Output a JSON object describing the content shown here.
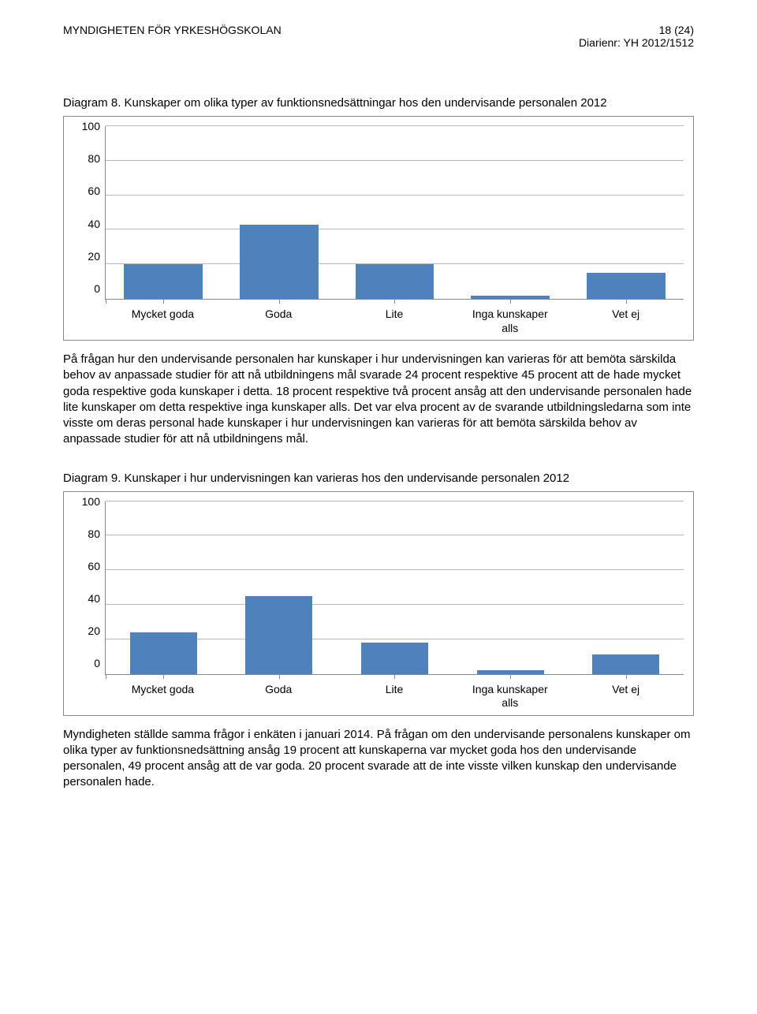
{
  "header": {
    "left": "MYNDIGHETEN FÖR YRKESHÖGSKOLAN",
    "page": "18 (24)",
    "ref": "Diarienr: YH 2012/1512"
  },
  "diagram8": {
    "title": "Diagram 8. Kunskaper om olika typer av funktionsnedsättningar hos den undervisande personalen 2012",
    "type": "bar",
    "categories": [
      "Mycket goda",
      "Goda",
      "Lite",
      "Inga kunskaper\nalls",
      "Vet ej"
    ],
    "values": [
      20,
      43,
      20,
      2,
      15
    ],
    "bar_color": "#4f81bd",
    "ylim_max": 100,
    "ytick_step": 20,
    "yticks": [
      "100",
      "80",
      "60",
      "40",
      "20",
      "0"
    ],
    "grid_color": "#bbbbbb",
    "border_color": "#888888",
    "label_fontsize": 14
  },
  "paragraph1": "På frågan hur den undervisande personalen har kunskaper i hur undervisningen kan varieras för att bemöta särskilda behov av anpassade studier för att nå utbildningens mål svarade 24 procent respektive 45 procent att de hade mycket goda respektive goda kunskaper i detta. 18 procent respektive två procent ansåg att den undervisande personalen hade lite kunskaper om detta respektive inga kunskaper alls. Det var elva procent av de svarande utbildningsledarna som inte visste om deras personal hade kunskaper i hur undervisningen kan varieras för att bemöta särskilda behov av anpassade studier för att nå utbildningens mål.",
  "diagram9": {
    "title": "Diagram 9. Kunskaper i hur undervisningen kan varieras hos den undervisande personalen 2012",
    "type": "bar",
    "categories": [
      "Mycket goda",
      "Goda",
      "Lite",
      "Inga kunskaper\nalls",
      "Vet ej"
    ],
    "values": [
      24,
      45,
      18,
      2,
      11
    ],
    "bar_color": "#4f81bd",
    "ylim_max": 100,
    "ytick_step": 20,
    "yticks": [
      "100",
      "80",
      "60",
      "40",
      "20",
      "0"
    ],
    "grid_color": "#bbbbbb",
    "border_color": "#888888",
    "label_fontsize": 14
  },
  "paragraph2": "Myndigheten ställde samma frågor i enkäten i januari 2014. På frågan om den undervisande personalens kunskaper om olika typer av funktionsnedsättning ansåg 19 procent att kunskaperna var mycket goda hos den undervisande personalen, 49 procent ansåg att de var goda. 20 procent svarade att de inte visste vilken kunskap den undervisande personalen hade."
}
